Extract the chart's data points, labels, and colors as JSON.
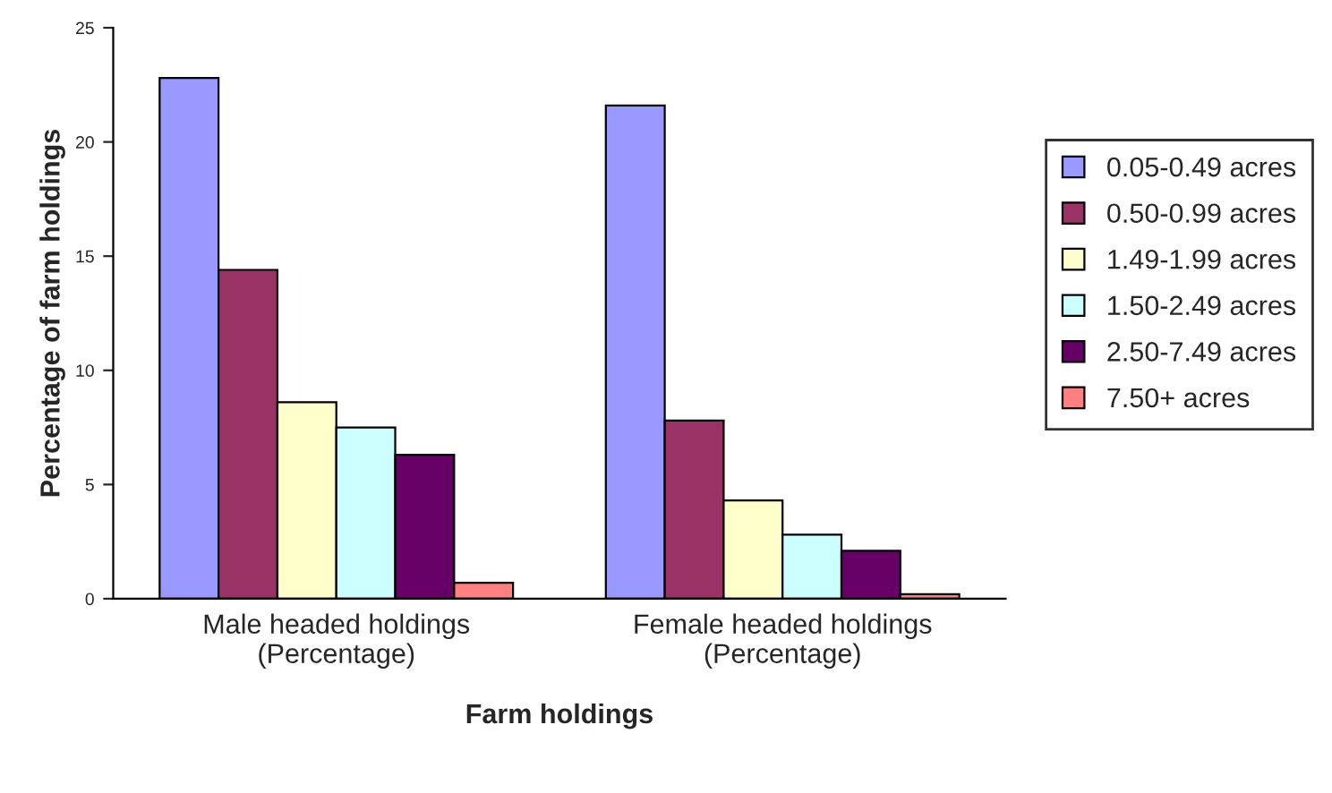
{
  "chart_data": {
    "type": "bar",
    "categories": [
      "Male headed holdings\n(Percentage)",
      "Female headed holdings\n(Percentage)"
    ],
    "series": [
      {
        "name": "0.05-0.49 acres",
        "color": "#9999ff",
        "values": [
          22.8,
          21.6
        ]
      },
      {
        "name": "0.50-0.99 acres",
        "color": "#993366",
        "values": [
          14.4,
          7.8
        ]
      },
      {
        "name": "1.49-1.99 acres",
        "color": "#ffffcc",
        "values": [
          8.6,
          4.3
        ]
      },
      {
        "name": "1.50-2.49 acres",
        "color": "#ccffff",
        "values": [
          7.5,
          2.8
        ]
      },
      {
        "name": "2.50-7.49 acres",
        "color": "#660066",
        "values": [
          6.3,
          2.1
        ]
      },
      {
        "name": "7.50+ acres",
        "color": "#ff8080",
        "values": [
          0.7,
          0.2
        ]
      }
    ],
    "xlabel": "Farm holdings",
    "ylabel": "Percentage of farm holdings",
    "ylim": [
      0,
      25
    ],
    "yticks": [
      0,
      5,
      10,
      15,
      20,
      25
    ],
    "grid": false,
    "legend": "right"
  }
}
